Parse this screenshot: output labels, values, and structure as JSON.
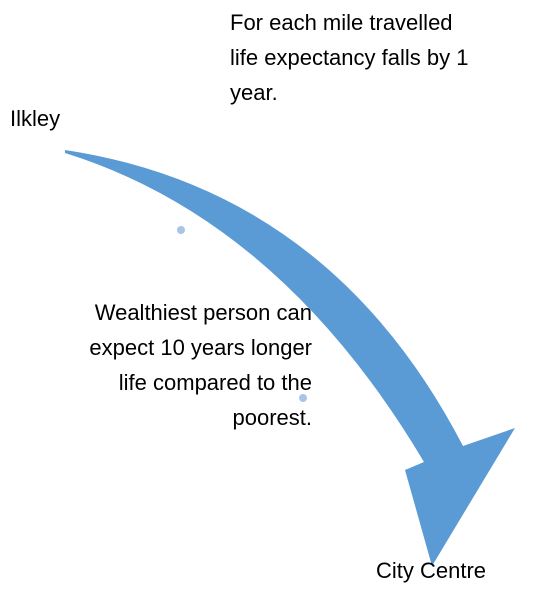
{
  "origin": {
    "label": "Ilkley"
  },
  "destination": {
    "label": "City Centre"
  },
  "notes": [
    {
      "lines": [
        "For each mile travelled",
        "life expectancy falls by 1",
        "year."
      ]
    },
    {
      "lines": [
        "Wealthiest person can",
        "expect 10 years longer",
        "life compared to the",
        "poorest."
      ]
    }
  ]
}
